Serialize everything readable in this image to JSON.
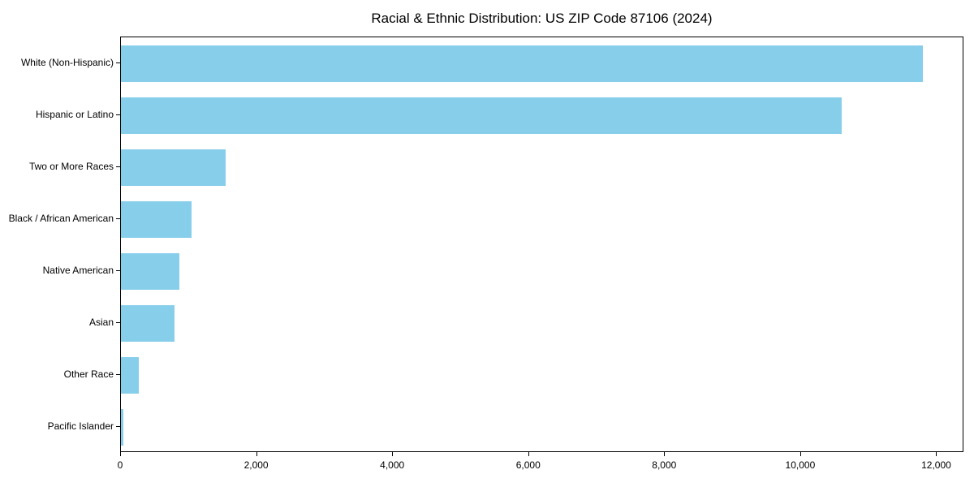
{
  "chart_data": {
    "type": "bar",
    "orientation": "horizontal",
    "title": "Racial & Ethnic Distribution: US ZIP Code 87106 (2024)",
    "categories": [
      "White (Non-Hispanic)",
      "Hispanic or Latino",
      "Two or More Races",
      "Black / African American",
      "Native American",
      "Asian",
      "Other Race",
      "Pacific Islander"
    ],
    "values": [
      11810,
      10620,
      1540,
      1040,
      860,
      790,
      260,
      40
    ],
    "xlabel": "",
    "ylabel": "",
    "xlim": [
      0,
      12400
    ],
    "xticks": [
      0,
      2000,
      4000,
      6000,
      8000,
      10000,
      12000
    ],
    "xtick_labels": [
      "0",
      "2,000",
      "4,000",
      "6,000",
      "8,000",
      "10,000",
      "12,000"
    ],
    "bar_color": "#87CEEB",
    "axis_color": "#000000",
    "background_color": "#ffffff",
    "grid": false,
    "legend": null
  }
}
